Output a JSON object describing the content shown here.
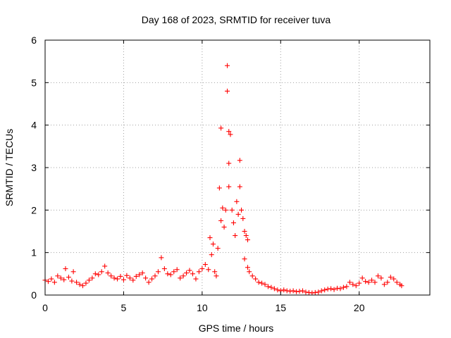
{
  "chart_data": {
    "type": "scatter",
    "title": "Day 168 of 2023, SRMTID for receiver tuva",
    "xlabel": "GPS time / hours",
    "ylabel": "SRMTID / TECUs",
    "xlim": [
      0,
      24.5
    ],
    "ylim": [
      0,
      6
    ],
    "xticks": [
      0,
      5,
      10,
      15,
      20
    ],
    "yticks": [
      0,
      1,
      2,
      3,
      4,
      5,
      6
    ],
    "xtick_labels": [
      "0",
      "5",
      "10",
      "15",
      "20"
    ],
    "ytick_labels": [
      "0",
      "1",
      "2",
      "3",
      "4",
      "5",
      "6"
    ],
    "grid": true,
    "marker": "+",
    "color": "#ff0000",
    "series": [
      {
        "name": "SRMTID",
        "points": [
          [
            0.0,
            0.35
          ],
          [
            0.2,
            0.32
          ],
          [
            0.4,
            0.38
          ],
          [
            0.6,
            0.3
          ],
          [
            0.8,
            0.45
          ],
          [
            1.0,
            0.4
          ],
          [
            1.2,
            0.36
          ],
          [
            1.3,
            0.62
          ],
          [
            1.5,
            0.42
          ],
          [
            1.7,
            0.33
          ],
          [
            1.8,
            0.55
          ],
          [
            2.0,
            0.3
          ],
          [
            2.2,
            0.25
          ],
          [
            2.4,
            0.22
          ],
          [
            2.6,
            0.28
          ],
          [
            2.8,
            0.35
          ],
          [
            3.0,
            0.4
          ],
          [
            3.2,
            0.5
          ],
          [
            3.4,
            0.48
          ],
          [
            3.6,
            0.55
          ],
          [
            3.8,
            0.68
          ],
          [
            4.0,
            0.52
          ],
          [
            4.2,
            0.45
          ],
          [
            4.4,
            0.4
          ],
          [
            4.6,
            0.38
          ],
          [
            4.8,
            0.44
          ],
          [
            5.0,
            0.36
          ],
          [
            5.2,
            0.46
          ],
          [
            5.4,
            0.4
          ],
          [
            5.6,
            0.35
          ],
          [
            5.8,
            0.44
          ],
          [
            6.0,
            0.48
          ],
          [
            6.2,
            0.52
          ],
          [
            6.4,
            0.4
          ],
          [
            6.6,
            0.3
          ],
          [
            6.8,
            0.38
          ],
          [
            7.0,
            0.45
          ],
          [
            7.2,
            0.55
          ],
          [
            7.4,
            0.88
          ],
          [
            7.6,
            0.62
          ],
          [
            7.8,
            0.5
          ],
          [
            8.0,
            0.48
          ],
          [
            8.2,
            0.55
          ],
          [
            8.4,
            0.6
          ],
          [
            8.6,
            0.4
          ],
          [
            8.8,
            0.45
          ],
          [
            9.0,
            0.52
          ],
          [
            9.2,
            0.58
          ],
          [
            9.4,
            0.5
          ],
          [
            9.6,
            0.38
          ],
          [
            9.8,
            0.55
          ],
          [
            10.0,
            0.62
          ],
          [
            10.2,
            0.72
          ],
          [
            10.4,
            0.6
          ],
          [
            10.5,
            1.35
          ],
          [
            10.6,
            0.95
          ],
          [
            10.7,
            1.2
          ],
          [
            10.8,
            0.55
          ],
          [
            10.9,
            0.45
          ],
          [
            11.0,
            1.1
          ],
          [
            11.1,
            2.52
          ],
          [
            11.2,
            3.93
          ],
          [
            11.2,
            1.75
          ],
          [
            11.3,
            2.05
          ],
          [
            11.4,
            1.6
          ],
          [
            11.5,
            2.0
          ],
          [
            11.6,
            5.4
          ],
          [
            11.6,
            4.8
          ],
          [
            11.7,
            3.85
          ],
          [
            11.7,
            3.1
          ],
          [
            11.8,
            3.78
          ],
          [
            11.7,
            2.55
          ],
          [
            11.9,
            2.0
          ],
          [
            12.0,
            1.7
          ],
          [
            12.1,
            1.4
          ],
          [
            12.2,
            2.2
          ],
          [
            12.3,
            1.9
          ],
          [
            12.4,
            3.17
          ],
          [
            12.4,
            2.55
          ],
          [
            12.5,
            2.0
          ],
          [
            12.6,
            1.8
          ],
          [
            12.7,
            1.5
          ],
          [
            12.8,
            1.4
          ],
          [
            12.9,
            1.3
          ],
          [
            12.7,
            0.85
          ],
          [
            12.9,
            0.65
          ],
          [
            13.0,
            0.55
          ],
          [
            13.2,
            0.45
          ],
          [
            13.4,
            0.38
          ],
          [
            13.6,
            0.3
          ],
          [
            13.8,
            0.28
          ],
          [
            14.0,
            0.25
          ],
          [
            14.2,
            0.2
          ],
          [
            14.4,
            0.18
          ],
          [
            14.6,
            0.15
          ],
          [
            14.8,
            0.12
          ],
          [
            15.0,
            0.1
          ],
          [
            15.2,
            0.12
          ],
          [
            15.4,
            0.1
          ],
          [
            15.6,
            0.09
          ],
          [
            15.8,
            0.1
          ],
          [
            16.0,
            0.08
          ],
          [
            16.2,
            0.09
          ],
          [
            16.4,
            0.1
          ],
          [
            16.6,
            0.07
          ],
          [
            16.8,
            0.06
          ],
          [
            17.0,
            0.05
          ],
          [
            17.2,
            0.06
          ],
          [
            17.4,
            0.07
          ],
          [
            17.6,
            0.1
          ],
          [
            17.8,
            0.12
          ],
          [
            18.0,
            0.14
          ],
          [
            18.2,
            0.15
          ],
          [
            18.4,
            0.13
          ],
          [
            18.6,
            0.16
          ],
          [
            18.8,
            0.15
          ],
          [
            19.0,
            0.18
          ],
          [
            19.2,
            0.2
          ],
          [
            19.4,
            0.3
          ],
          [
            19.6,
            0.25
          ],
          [
            19.8,
            0.22
          ],
          [
            20.0,
            0.28
          ],
          [
            20.2,
            0.4
          ],
          [
            20.4,
            0.32
          ],
          [
            20.6,
            0.3
          ],
          [
            20.8,
            0.35
          ],
          [
            21.0,
            0.3
          ],
          [
            21.2,
            0.45
          ],
          [
            21.4,
            0.4
          ],
          [
            21.6,
            0.25
          ],
          [
            21.8,
            0.3
          ],
          [
            22.0,
            0.42
          ],
          [
            22.2,
            0.38
          ],
          [
            22.4,
            0.3
          ],
          [
            22.6,
            0.25
          ],
          [
            22.7,
            0.22
          ]
        ]
      }
    ]
  }
}
